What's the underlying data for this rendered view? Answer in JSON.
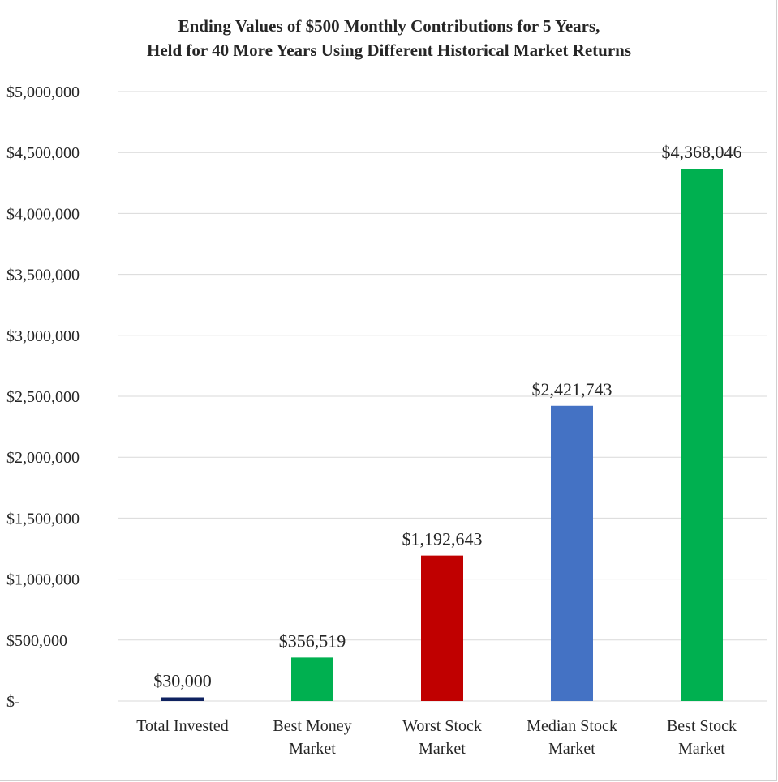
{
  "chart_data": {
    "type": "bar",
    "title_lines": [
      "Ending Values of $500 Monthly Contributions for 5 Years,",
      "Held for 40 More Years Using Different Historical Market Returns"
    ],
    "categories": [
      [
        "Total Invested"
      ],
      [
        "Best Money",
        "Market"
      ],
      [
        "Worst Stock",
        "Market"
      ],
      [
        "Median Stock",
        "Market"
      ],
      [
        "Best Stock",
        "Market"
      ]
    ],
    "values": [
      30000,
      356519,
      1192643,
      2421743,
      4368046
    ],
    "data_labels": [
      "$30,000",
      "$356,519",
      "$1,192,643",
      "$2,421,743",
      "$4,368,046"
    ],
    "colors": [
      "#0f2260",
      "#00b050",
      "#c00000",
      "#4472c4",
      "#00b050"
    ],
    "ylim": [
      0,
      5000000
    ],
    "yticks": [
      0,
      500000,
      1000000,
      1500000,
      2000000,
      2500000,
      3000000,
      3500000,
      4000000,
      4500000,
      5000000
    ],
    "ytick_labels": [
      "$-",
      "$500,000",
      "$1,000,000",
      "$1,500,000",
      "$2,000,000",
      "$2,500,000",
      "$3,000,000",
      "$3,500,000",
      "$4,000,000",
      "$4,500,000",
      "$5,000,000"
    ],
    "grid": true,
    "gridline_color": "#d9d9d9",
    "legend": "none",
    "xlabel": "",
    "ylabel": ""
  }
}
